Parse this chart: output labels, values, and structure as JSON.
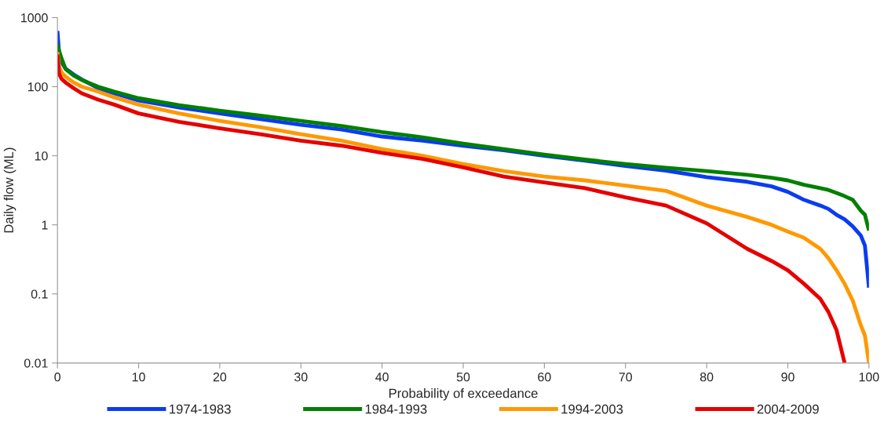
{
  "chart_data": {
    "type": "line",
    "xlabel": "Probability of exceedance",
    "ylabel": "Daily flow (ML)",
    "log": "y",
    "grid": false,
    "legend": "bottom",
    "marker": "none",
    "line_style": "solid",
    "xlim": [
      0,
      100
    ],
    "xticks": [
      0,
      10,
      20,
      30,
      40,
      50,
      60,
      70,
      80,
      90,
      100
    ],
    "ylim": [
      0.01,
      1000
    ],
    "yticks": [
      0.01,
      0.1,
      1,
      10,
      100,
      1000
    ],
    "series": [
      {
        "name": "1974-1983",
        "color": "#0a3cf0",
        "x": [
          0,
          0.2,
          0.5,
          1,
          2,
          3,
          5,
          7,
          10,
          15,
          20,
          25,
          30,
          35,
          40,
          45,
          50,
          55,
          60,
          65,
          70,
          75,
          80,
          85,
          88,
          90,
          92,
          94,
          95,
          96,
          97,
          98,
          99,
          99.5,
          100
        ],
        "values": [
          640,
          300,
          226,
          183,
          150,
          127,
          95,
          80,
          63,
          50,
          41,
          34,
          28,
          24,
          19,
          16.5,
          14,
          12,
          10,
          8.5,
          7.1,
          6.1,
          4.9,
          4.2,
          3.6,
          3.0,
          2.3,
          1.9,
          1.7,
          1.4,
          1.2,
          0.95,
          0.7,
          0.5,
          0.123
        ]
      },
      {
        "name": "1984-1993",
        "color": "#008000",
        "x": [
          0,
          0.2,
          0.5,
          1,
          2,
          3,
          5,
          7,
          10,
          15,
          20,
          25,
          30,
          35,
          40,
          45,
          50,
          55,
          60,
          65,
          70,
          75,
          80,
          85,
          88,
          90,
          92,
          94,
          95,
          96,
          97,
          98,
          99,
          99.5,
          100
        ],
        "values": [
          412,
          330,
          257,
          180,
          145,
          125,
          100,
          85,
          68,
          54,
          45,
          38,
          32,
          27,
          22,
          18.5,
          15,
          12.5,
          10.4,
          8.8,
          7.6,
          6.7,
          6.0,
          5.3,
          4.8,
          4.4,
          3.8,
          3.4,
          3.2,
          2.9,
          2.6,
          2.3,
          1.6,
          1.4,
          0.83
        ]
      },
      {
        "name": "1994-2003",
        "color": "#ff9900",
        "x": [
          0,
          0.2,
          0.5,
          1,
          2,
          3,
          5,
          7,
          10,
          15,
          20,
          25,
          30,
          35,
          40,
          45,
          50,
          55,
          60,
          65,
          70,
          75,
          80,
          85,
          88,
          90,
          92,
          94,
          95,
          96,
          97,
          98,
          99,
          99.5,
          100
        ],
        "values": [
          317,
          200,
          160,
          140,
          115,
          100,
          85,
          70,
          55,
          41,
          32,
          26,
          20.5,
          16.5,
          12.5,
          10,
          7.6,
          6.0,
          5.0,
          4.4,
          3.7,
          3.1,
          1.9,
          1.3,
          1.0,
          0.8,
          0.65,
          0.45,
          0.33,
          0.22,
          0.14,
          0.08,
          0.035,
          0.025,
          0.01
        ]
      },
      {
        "name": "2004-2009",
        "color": "#e60000",
        "x": [
          0,
          0.2,
          0.5,
          1,
          2,
          3,
          5,
          7,
          10,
          15,
          20,
          25,
          30,
          35,
          40,
          45,
          50,
          55,
          60,
          65,
          70,
          75,
          80,
          85,
          88,
          90,
          92,
          94,
          95,
          96,
          97
        ],
        "values": [
          293,
          153,
          130,
          115,
          95,
          80,
          65,
          55,
          41,
          31,
          25,
          20.5,
          16.5,
          14,
          11,
          9,
          6.8,
          5.0,
          4.1,
          3.4,
          2.5,
          1.9,
          1.05,
          0.45,
          0.3,
          0.22,
          0.14,
          0.085,
          0.055,
          0.03,
          0.01
        ]
      }
    ]
  }
}
